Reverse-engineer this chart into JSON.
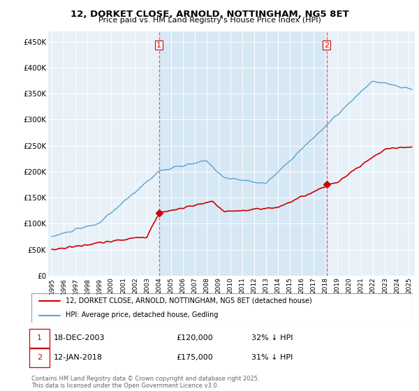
{
  "title": "12, DORKET CLOSE, ARNOLD, NOTTINGHAM, NG5 8ET",
  "subtitle": "Price paid vs. HM Land Registry's House Price Index (HPI)",
  "ylabel_ticks": [
    "£0",
    "£50K",
    "£100K",
    "£150K",
    "£200K",
    "£250K",
    "£300K",
    "£350K",
    "£400K",
    "£450K"
  ],
  "ytick_values": [
    0,
    50000,
    100000,
    150000,
    200000,
    250000,
    300000,
    350000,
    400000,
    450000
  ],
  "ylim": [
    0,
    470000
  ],
  "hpi_color": "#5ba3d0",
  "hpi_fill_color": "#d6e8f5",
  "price_color": "#cc0000",
  "vline_color": "#e06060",
  "sale1_year": 2004.0,
  "sale1_price": 120000,
  "sale2_year": 2018.08,
  "sale2_price": 175000,
  "legend_line1": "12, DORKET CLOSE, ARNOLD, NOTTINGHAM, NG5 8ET (detached house)",
  "legend_line2": "HPI: Average price, detached house, Gedling",
  "footer": "Contains HM Land Registry data © Crown copyright and database right 2025.\nThis data is licensed under the Open Government Licence v3.0.",
  "x_start_year": 1995,
  "x_end_year": 2025,
  "background_color": "#e8f0f8"
}
